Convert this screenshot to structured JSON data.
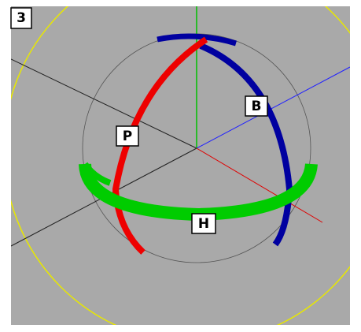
{
  "viewport": {
    "label": "3"
  },
  "gizmo": {
    "pitch_label": "P",
    "bank_label": "B",
    "heading_label": "H"
  }
}
